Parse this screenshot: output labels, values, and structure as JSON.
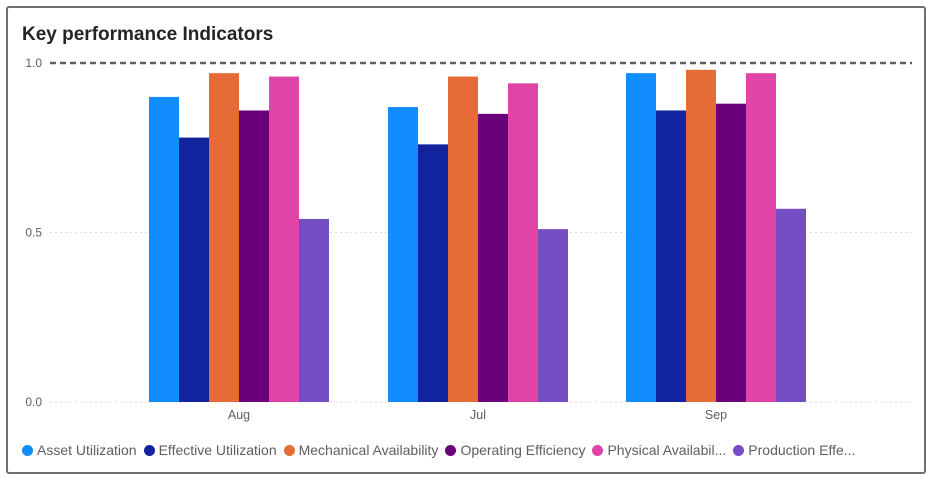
{
  "title": "Key performance Indicators",
  "chart_data": {
    "type": "bar",
    "title": "Key performance Indicators",
    "xlabel": "",
    "ylabel": "",
    "ylim": [
      0,
      1
    ],
    "yticks": [
      "0.0",
      "0.5",
      "1.0"
    ],
    "grid": true,
    "reference_line": 1.0,
    "legend_position": "bottom",
    "categories": [
      "Aug",
      "Jul",
      "Sep"
    ],
    "series": [
      {
        "name": "Asset Utilization",
        "color": "#118dff",
        "values": [
          0.9,
          0.87,
          0.97
        ]
      },
      {
        "name": "Effective Utilization",
        "color": "#12239e",
        "values": [
          0.78,
          0.76,
          0.86
        ]
      },
      {
        "name": "Mechanical Availability",
        "color": "#e66c37",
        "values": [
          0.97,
          0.96,
          0.98
        ]
      },
      {
        "name": "Operating Efficiency",
        "color": "#6b007b",
        "values": [
          0.86,
          0.85,
          0.88
        ]
      },
      {
        "name": "Physical Availabil...",
        "color": "#e044a7",
        "values": [
          0.96,
          0.94,
          0.97
        ]
      },
      {
        "name": "Production Effe...",
        "color": "#744ec2",
        "values": [
          0.54,
          0.51,
          0.57
        ]
      }
    ]
  }
}
